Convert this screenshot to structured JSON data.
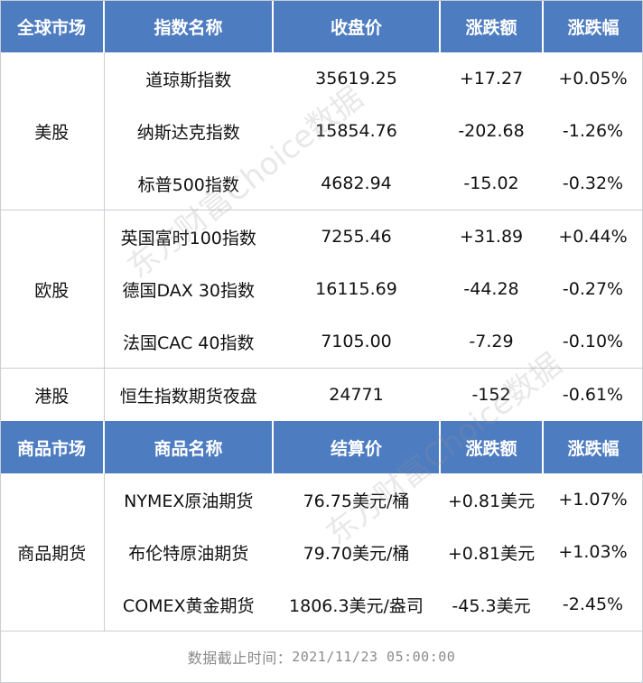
{
  "index_header": {
    "market": "全球市场",
    "name": "指数名称",
    "close": "收盘价",
    "change": "涨跌额",
    "change_pct": "涨跌幅"
  },
  "index_groups": [
    {
      "market": "美股",
      "rows": [
        {
          "name": "道琼斯指数",
          "close": "35619.25",
          "change": "+17.27",
          "change_pct": "+0.05%"
        },
        {
          "name": "纳斯达克指数",
          "close": "15854.76",
          "change": "-202.68",
          "change_pct": "-1.26%"
        },
        {
          "name": "标普500指数",
          "close": "4682.94",
          "change": "-15.02",
          "change_pct": "-0.32%"
        }
      ]
    },
    {
      "market": "欧股",
      "rows": [
        {
          "name": "英国富时100指数",
          "close": "7255.46",
          "change": "+31.89",
          "change_pct": "+0.44%"
        },
        {
          "name": "德国DAX 30指数",
          "close": "16115.69",
          "change": "-44.28",
          "change_pct": "-0.27%"
        },
        {
          "name": "法国CAC 40指数",
          "close": "7105.00",
          "change": "-7.29",
          "change_pct": "-0.10%"
        }
      ]
    },
    {
      "market": "港股",
      "rows": [
        {
          "name": "恒生指数期货夜盘",
          "close": "24771",
          "change": "-152",
          "change_pct": "-0.61%"
        }
      ]
    }
  ],
  "commodity_header": {
    "market": "商品市场",
    "name": "商品名称",
    "settle": "结算价",
    "change": "涨跌额",
    "change_pct": "涨跌幅"
  },
  "commodity_groups": [
    {
      "market": "商品期货",
      "rows": [
        {
          "name": "NYMEX原油期货",
          "settle": "76.75美元/桶",
          "change": "+0.81美元",
          "change_pct": "+1.07%"
        },
        {
          "name": "布伦特原油期货",
          "settle": "79.70美元/桶",
          "change": "+0.81美元",
          "change_pct": "+1.03%"
        },
        {
          "name": "COMEX黄金期货",
          "settle": "1806.3美元/盎司",
          "change": "-45.3美元",
          "change_pct": "-2.45%"
        }
      ]
    }
  ],
  "footer": {
    "label": "数据截止时间：",
    "time": "2021/11/23 05:00:00"
  },
  "watermark": "东方财富Choice数据",
  "colors": {
    "header_bg": "#4e7cc0",
    "header_text": "#ffffff",
    "divider": "#c9cdd3",
    "footer_text": "#8a8a8a"
  }
}
